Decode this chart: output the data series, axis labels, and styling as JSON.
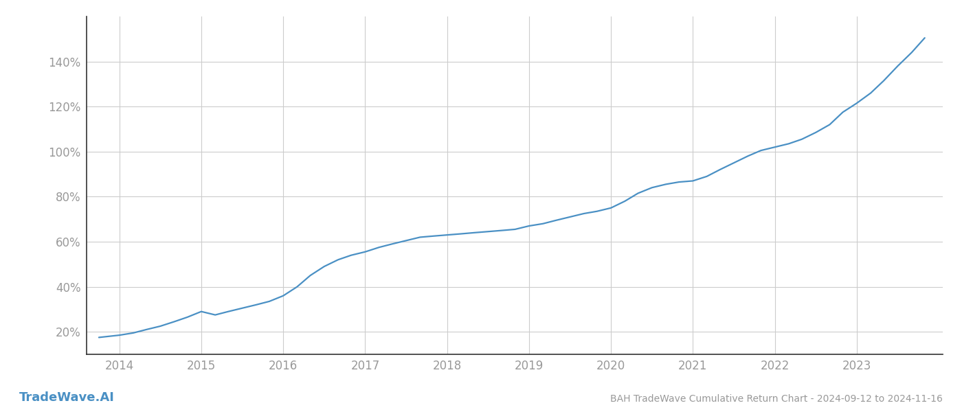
{
  "title": "BAH TradeWave Cumulative Return Chart - 2024-09-12 to 2024-11-16",
  "watermark": "TradeWave.AI",
  "line_color": "#4a90c4",
  "background_color": "#ffffff",
  "grid_color": "#cccccc",
  "x_years": [
    2013.75,
    2014.0,
    2014.17,
    2014.33,
    2014.5,
    2014.67,
    2014.83,
    2015.0,
    2015.17,
    2015.33,
    2015.5,
    2015.67,
    2015.83,
    2016.0,
    2016.17,
    2016.33,
    2016.5,
    2016.67,
    2016.83,
    2017.0,
    2017.17,
    2017.33,
    2017.5,
    2017.67,
    2017.83,
    2018.0,
    2018.17,
    2018.33,
    2018.5,
    2018.67,
    2018.83,
    2019.0,
    2019.17,
    2019.33,
    2019.5,
    2019.67,
    2019.83,
    2020.0,
    2020.17,
    2020.33,
    2020.5,
    2020.67,
    2020.83,
    2021.0,
    2021.17,
    2021.33,
    2021.5,
    2021.67,
    2021.83,
    2022.0,
    2022.17,
    2022.33,
    2022.5,
    2022.67,
    2022.83,
    2023.0,
    2023.17,
    2023.33,
    2023.5,
    2023.67,
    2023.83
  ],
  "y_values": [
    17.5,
    18.5,
    19.5,
    21.0,
    22.5,
    24.5,
    26.5,
    29.0,
    27.5,
    29.0,
    30.5,
    32.0,
    33.5,
    36.0,
    40.0,
    45.0,
    49.0,
    52.0,
    54.0,
    55.5,
    57.5,
    59.0,
    60.5,
    62.0,
    62.5,
    63.0,
    63.5,
    64.0,
    64.5,
    65.0,
    65.5,
    67.0,
    68.0,
    69.5,
    71.0,
    72.5,
    73.5,
    75.0,
    78.0,
    81.5,
    84.0,
    85.5,
    86.5,
    87.0,
    89.0,
    92.0,
    95.0,
    98.0,
    100.5,
    102.0,
    103.5,
    105.5,
    108.5,
    112.0,
    117.5,
    121.5,
    126.0,
    131.5,
    138.0,
    144.0,
    150.5
  ],
  "xticks": [
    2014,
    2015,
    2016,
    2017,
    2018,
    2019,
    2020,
    2021,
    2022,
    2023
  ],
  "yticks": [
    20,
    40,
    60,
    80,
    100,
    120,
    140
  ],
  "xlim": [
    2013.6,
    2024.05
  ],
  "ylim": [
    10,
    160
  ],
  "title_fontsize": 10,
  "tick_fontsize": 12,
  "watermark_fontsize": 13,
  "tick_color": "#999999",
  "spine_color": "#333333",
  "line_width": 1.6
}
